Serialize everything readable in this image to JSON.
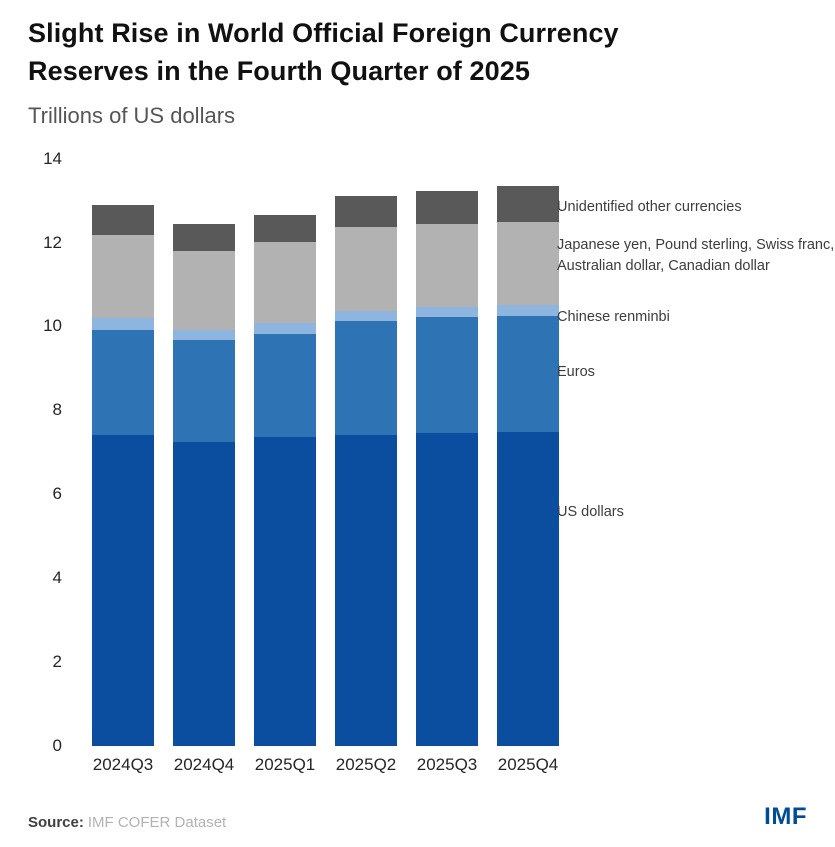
{
  "header": {
    "title": "Slight Rise in World Official Foreign Currency Reserves in the Fourth Quarter of 2025",
    "subtitle": "Trillions of US dollars"
  },
  "footer": {
    "source_label": "Source:",
    "source_text": "IMF COFER Dataset",
    "logo": "IMF"
  },
  "colors": {
    "us_dollars": "#0b4ea0",
    "euros": "#2e74b5",
    "chinese_renminbi": "#8eb4e0",
    "other_major": "#b2b2b2",
    "unidentified": "#595959",
    "brand_blue": "#004c97"
  },
  "chart_data": {
    "type": "bar",
    "stacked": true,
    "title": "Slight Rise in World Official Foreign Currency Reserves in the Fourth Quarter of 2025",
    "subtitle": "Trillions of US dollars",
    "xlabel": "",
    "ylabel": "Trillions of US dollars",
    "ylim": [
      0,
      14
    ],
    "yticks": [
      0,
      2,
      4,
      6,
      8,
      10,
      12,
      14
    ],
    "grid": false,
    "legend_position": "right",
    "categories": [
      "2024Q3",
      "2024Q4",
      "2025Q1",
      "2025Q2",
      "2025Q3",
      "2025Q4"
    ],
    "series": [
      {
        "name": "US dollars",
        "color": "#0b4ea0",
        "values": [
          7.42,
          7.25,
          7.35,
          7.42,
          7.46,
          7.47
        ]
      },
      {
        "name": "Euros",
        "color": "#2e74b5",
        "values": [
          2.5,
          2.42,
          2.47,
          2.7,
          2.76,
          2.78
        ]
      },
      {
        "name": "Chinese renminbi",
        "color": "#8eb4e0",
        "values": [
          0.28,
          0.25,
          0.25,
          0.25,
          0.25,
          0.26
        ]
      },
      {
        "name": "Japanese yen, Pound sterling, Swiss franc, Australian dollar, Canadian dollar",
        "color": "#b2b2b2",
        "values": [
          1.98,
          1.88,
          1.93,
          2.0,
          1.97,
          1.97
        ]
      },
      {
        "name": "Unidentified other currencies",
        "color": "#595959",
        "values": [
          0.72,
          0.65,
          0.65,
          0.73,
          0.8,
          0.87
        ]
      }
    ],
    "totals": [
      12.9,
      12.45,
      12.65,
      13.1,
      13.24,
      13.35
    ]
  }
}
